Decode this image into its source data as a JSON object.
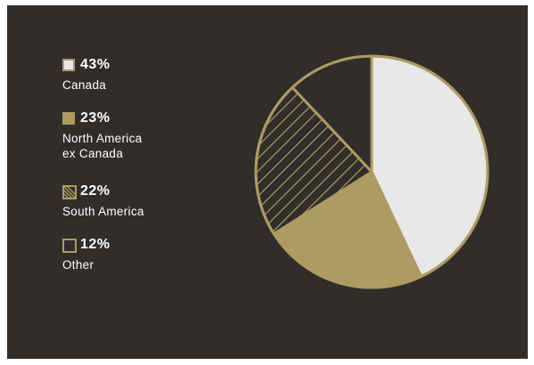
{
  "colors": {
    "background": "#302d2b",
    "gold": "#ad9b62",
    "light": "#e8e8e8",
    "outline": "#ad9b62"
  },
  "chart_data": {
    "type": "pie",
    "title": "",
    "slices": [
      {
        "pct_label": "43%",
        "label": "Canada",
        "value": 43,
        "style": "light"
      },
      {
        "pct_label": "23%",
        "label": "North America ex Canada",
        "label_lines": [
          "North America",
          "ex Canada"
        ],
        "value": 23,
        "style": "gold"
      },
      {
        "pct_label": "22%",
        "label": "South America",
        "value": 22,
        "style": "hatched"
      },
      {
        "pct_label": "12%",
        "label": "Other",
        "value": 12,
        "style": "outline"
      }
    ],
    "start_angle_deg": 0,
    "direction": "clockwise",
    "legend_position": "left"
  }
}
